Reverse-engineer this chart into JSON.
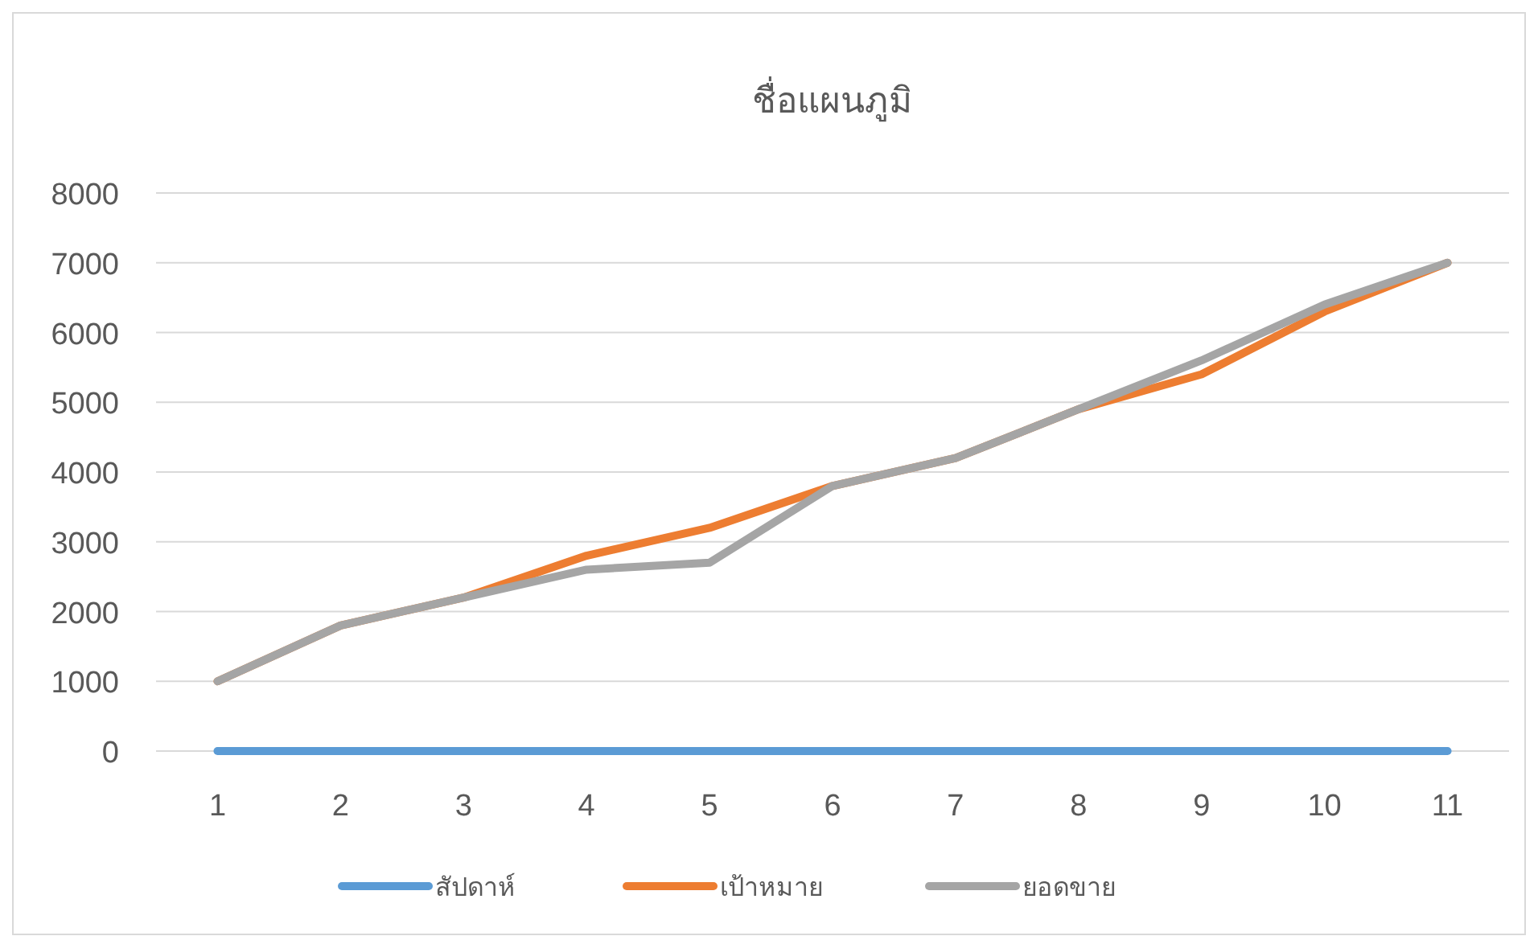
{
  "chart_data": {
    "type": "line",
    "title": "ชื่อแผนภูมิ",
    "categories": [
      "1",
      "2",
      "3",
      "4",
      "5",
      "6",
      "7",
      "8",
      "9",
      "10",
      "11"
    ],
    "series": [
      {
        "name": "สัปดาห์",
        "color": "#5b9bd5",
        "values": [
          0,
          0,
          0,
          0,
          0,
          0,
          0,
          0,
          0,
          0,
          0
        ]
      },
      {
        "name": "เป้าหมาย",
        "color": "#ed7d31",
        "values": [
          1000,
          1800,
          2200,
          2800,
          3200,
          3800,
          4200,
          4900,
          5400,
          6300,
          7000
        ]
      },
      {
        "name": "ยอดขาย",
        "color": "#a5a5a5",
        "values": [
          1000,
          1800,
          2200,
          2600,
          2700,
          3800,
          4200,
          4900,
          5600,
          6400,
          7000
        ]
      }
    ],
    "ylim": [
      0,
      8000
    ],
    "yticks": [
      0,
      1000,
      2000,
      3000,
      4000,
      5000,
      6000,
      7000,
      8000
    ],
    "grid": "y",
    "legend": "bottom",
    "marker": "none",
    "line_style": "solid"
  }
}
